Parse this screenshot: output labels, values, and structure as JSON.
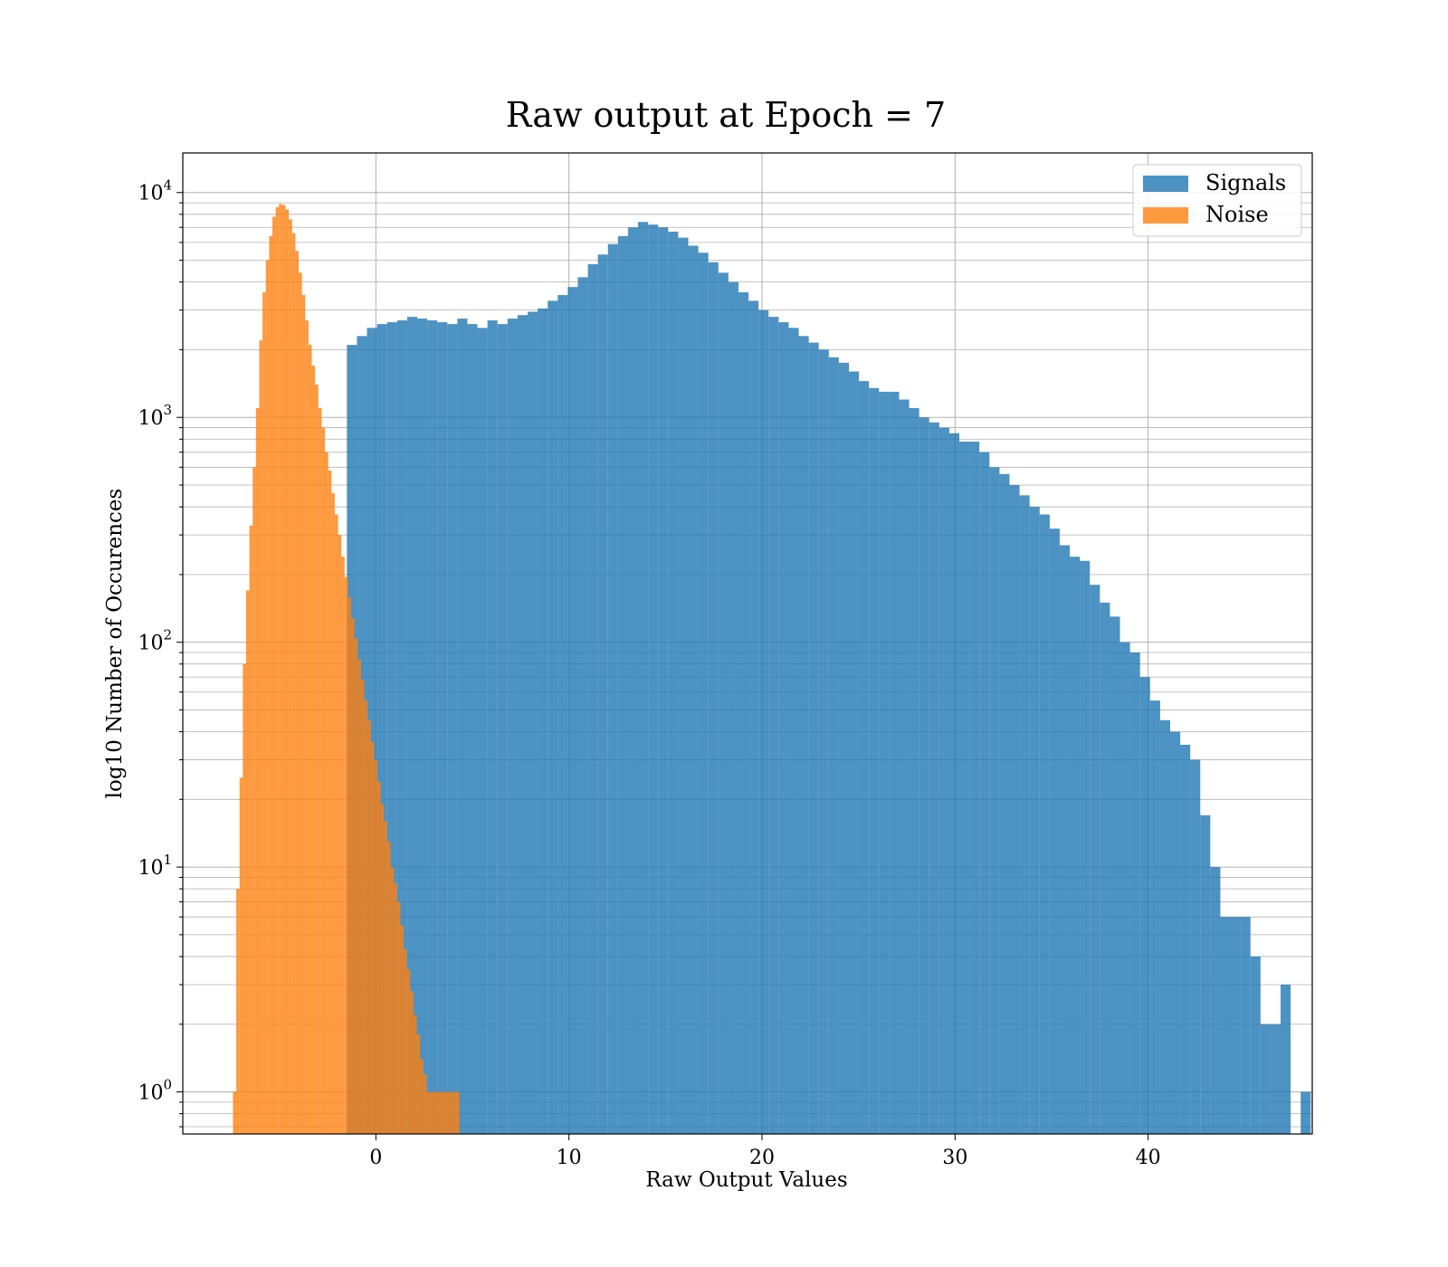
{
  "chart_data": {
    "type": "bar",
    "title": "Raw output at Epoch = 7",
    "xlabel": "Raw Output Values",
    "ylabel": "log10 Number of Occurences",
    "yscale": "log",
    "xlim": [
      -10,
      48.5
    ],
    "ylim": [
      0.65,
      15000
    ],
    "xticks": [
      0,
      10,
      20,
      30,
      40
    ],
    "yticks": [
      {
        "value": 1,
        "base": "10",
        "exp": "0"
      },
      {
        "value": 10,
        "base": "10",
        "exp": "1"
      },
      {
        "value": 100,
        "base": "10",
        "exp": "2"
      },
      {
        "value": 1000,
        "base": "10",
        "exp": "3"
      },
      {
        "value": 10000,
        "base": "10",
        "exp": "4"
      }
    ],
    "grid": true,
    "legend_position": "top-right",
    "legend": [
      "Signals",
      "Noise"
    ],
    "series": [
      {
        "name": "Signals",
        "color": "#1f77b4",
        "opacity": 0.8,
        "bin_start": -1.5,
        "bin_width": 0.52,
        "values": [
          2100,
          2300,
          2500,
          2600,
          2650,
          2700,
          2800,
          2750,
          2700,
          2650,
          2600,
          2750,
          2600,
          2500,
          2700,
          2600,
          2750,
          2850,
          2950,
          3050,
          3300,
          3500,
          3800,
          4200,
          4800,
          5300,
          5900,
          6400,
          7000,
          7400,
          7200,
          7000,
          6700,
          6300,
          5800,
          5400,
          4900,
          4400,
          4000,
          3600,
          3300,
          3000,
          2800,
          2650,
          2500,
          2300,
          2150,
          2000,
          1850,
          1750,
          1600,
          1450,
          1350,
          1300,
          1300,
          1200,
          1100,
          1000,
          950,
          900,
          850,
          780,
          780,
          700,
          600,
          560,
          500,
          450,
          400,
          370,
          320,
          270,
          240,
          230,
          180,
          150,
          130,
          100,
          90,
          70,
          55,
          45,
          40,
          35,
          30,
          17,
          10,
          6,
          6,
          6,
          4,
          2,
          2,
          3,
          0,
          1
        ]
      },
      {
        "name": "Noise",
        "color": "#ff7f0e",
        "opacity": 0.8,
        "bin_start": -7.4,
        "bin_width": 0.17,
        "values": [
          1,
          8,
          25,
          80,
          170,
          330,
          600,
          1100,
          2200,
          3600,
          5000,
          6400,
          7800,
          8600,
          8900,
          8800,
          8400,
          7600,
          6600,
          5500,
          4400,
          3500,
          2700,
          2100,
          1700,
          1400,
          1100,
          900,
          700,
          580,
          460,
          370,
          300,
          240,
          195,
          158,
          128,
          104,
          84,
          68,
          55,
          45,
          36,
          30,
          24,
          19,
          16,
          13,
          10,
          8.5,
          7,
          5.5,
          4.3,
          3.5,
          2.8,
          2.2,
          1.8,
          1.4,
          1.2,
          1,
          1,
          1,
          1,
          1,
          1,
          1,
          1,
          1,
          1
        ]
      }
    ]
  }
}
